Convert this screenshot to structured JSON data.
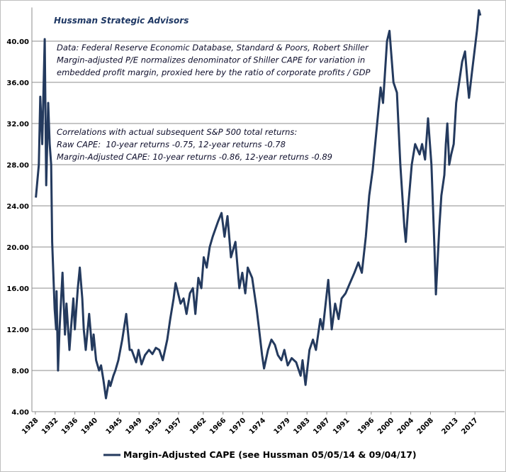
{
  "chart_data": {
    "type": "line",
    "title": "Hussman Strategic Advisors",
    "annotations": [
      [
        "Data: Federal Reserve Economic Database, Standard & Poors, Robert Shiller",
        "Margin-adjusted P/E normalizes denominator of Shiller CAPE for variation in",
        "embedded profit margin, proxied here by the ratio of corporate profits / GDP"
      ],
      [
        "Correlations with actual subsequent S&P 500 total returns:",
        "Raw CAPE:  10-year returns -0.75, 12-year returns -0.78",
        "Margin-Adjusted CAPE: 10-year returns -0.86, 12-year returns -0.89"
      ]
    ],
    "x": [
      1928.1,
      1928.7,
      1929.0,
      1929.4,
      1929.9,
      1930.2,
      1930.6,
      1930.9,
      1931.2,
      1931.4,
      1931.9,
      1932.2,
      1932.3,
      1932.6,
      1932.9,
      1933.5,
      1934.0,
      1934.3,
      1934.9,
      1935.2,
      1935.7,
      1936.0,
      1936.6,
      1937.0,
      1937.5,
      1937.8,
      1938.2,
      1938.9,
      1939.5,
      1939.8,
      1940.3,
      1940.9,
      1941.3,
      1941.8,
      1942.3,
      1942.9,
      1943.2,
      1943.8,
      1944.2,
      1944.8,
      1945.6,
      1946.4,
      1947.1,
      1947.5,
      1948.4,
      1948.9,
      1949.5,
      1950.2,
      1951.0,
      1951.7,
      1952.4,
      1953.1,
      1953.8,
      1954.7,
      1955.3,
      1956.0,
      1956.4,
      1957.4,
      1958.0,
      1958.6,
      1959.3,
      1959.9,
      1960.4,
      1961.0,
      1961.6,
      1962.1,
      1962.7,
      1963.3,
      1963.9,
      1965.0,
      1965.7,
      1966.3,
      1966.9,
      1967.6,
      1968.5,
      1969.3,
      1969.9,
      1970.5,
      1971.0,
      1971.9,
      1972.8,
      1973.3,
      1973.9,
      1974.3,
      1975.1,
      1975.8,
      1976.5,
      1977.1,
      1977.8,
      1978.4,
      1979.1,
      1979.9,
      1980.8,
      1981.7,
      1982.1,
      1982.7,
      1983.5,
      1984.2,
      1984.8,
      1985.7,
      1986.2,
      1987.3,
      1988.0,
      1988.7,
      1989.4,
      1990.0,
      1990.8,
      1991.7,
      1992.6,
      1993.4,
      1994.1,
      1994.9,
      1995.6,
      1996.3,
      1997.2,
      1997.9,
      1998.4,
      1999.2,
      1999.7,
      2000.5,
      2001.2,
      2001.9,
      2002.3,
      2002.7,
      2003.0,
      2003.5,
      2004.2,
      2004.9,
      2005.8,
      2006.3,
      2006.9,
      2007.5,
      2008.2,
      2008.5,
      2008.8,
      2009.1,
      2009.8,
      2010.2,
      2010.8,
      2011.1,
      2011.4,
      2011.8,
      2012.2,
      2012.7,
      2013.2,
      2013.8,
      2014.4,
      2015.0,
      2015.5,
      2015.8,
      2016.4,
      2016.9,
      2017.4,
      2017.8,
      2018.1
    ],
    "series": [
      {
        "name": "Margin-Adjusted CAPE (see Hussman 05/05/14 & 09/04/17)",
        "color": "#243a5e",
        "values": [
          24.8,
          28,
          34.6,
          30,
          40.2,
          26,
          34,
          30,
          28,
          20.5,
          14,
          12,
          15.7,
          8,
          12,
          17.5,
          11.5,
          14.5,
          10,
          12,
          15,
          12,
          16,
          18,
          15,
          12,
          10,
          13.5,
          10,
          11.5,
          9,
          8,
          8.5,
          7,
          5.3,
          7,
          6.5,
          7.5,
          8,
          9,
          11,
          13.5,
          10,
          10,
          8.8,
          10,
          8.6,
          9.5,
          10,
          9.6,
          10.2,
          10,
          9,
          11,
          13,
          15,
          16.5,
          14.5,
          15,
          13.5,
          15.5,
          16,
          13.5,
          17,
          16,
          19,
          18,
          20,
          21,
          22.5,
          23.3,
          21,
          23,
          19,
          20.5,
          16,
          17.5,
          15.5,
          18,
          17,
          14,
          12,
          9.5,
          8.2,
          10,
          11,
          10.5,
          9.5,
          9,
          10,
          8.5,
          9.2,
          8.8,
          7.5,
          9,
          6.6,
          10,
          11,
          10,
          13,
          12,
          16.8,
          12,
          14.5,
          13,
          15,
          15.5,
          16.5,
          17.5,
          18.5,
          17.5,
          21,
          25,
          27.5,
          32,
          35.5,
          34,
          40,
          41,
          36,
          35,
          28,
          25,
          22,
          20.5,
          24,
          28,
          30,
          29,
          30,
          28.5,
          32.5,
          28,
          24,
          20,
          15.4,
          22,
          25,
          27,
          30,
          32,
          28,
          29,
          30,
          34,
          36,
          38,
          39,
          36,
          34.5,
          37,
          39,
          41,
          43,
          42.5
        ]
      }
    ],
    "xlim": [
      1927.3,
      2023
    ],
    "xticks": [
      1928,
      1932,
      1936,
      1940,
      1945,
      1949,
      1953,
      1957,
      1962,
      1966,
      1970,
      1974,
      1979,
      1983,
      1987,
      1991,
      1996,
      2000,
      2004,
      2008,
      2013,
      2017
    ],
    "ylim": [
      4,
      43
    ],
    "yticks": [
      {
        "value": 4,
        "label": "4.00"
      },
      {
        "value": 8,
        "label": "8.00"
      },
      {
        "value": 12,
        "label": "12.00"
      },
      {
        "value": 16,
        "label": "16.00"
      },
      {
        "value": 20,
        "label": "20.00"
      },
      {
        "value": 24,
        "label": "24.00"
      },
      {
        "value": 28,
        "label": "28.00"
      },
      {
        "value": 32,
        "label": "32.00"
      },
      {
        "value": 36,
        "label": "36.00"
      },
      {
        "value": 40,
        "label": "40.00"
      }
    ],
    "grid": true
  }
}
